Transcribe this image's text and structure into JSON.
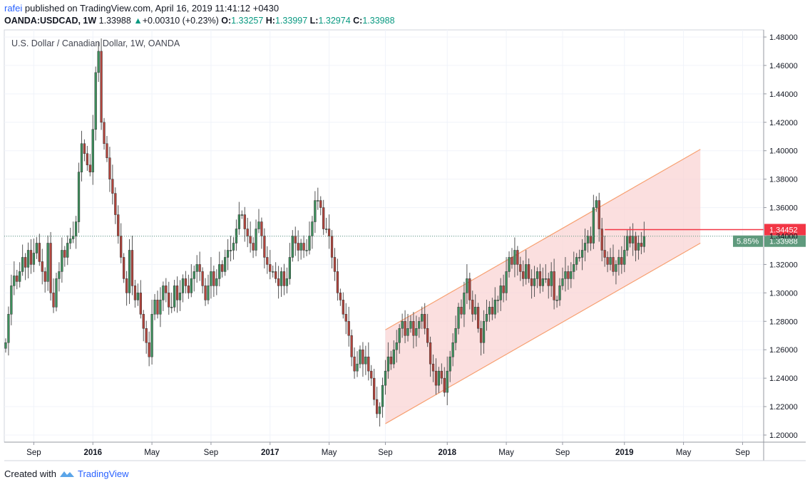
{
  "header": {
    "user": "rafei",
    "published_text": "published on TradingView.com, April 16, 2019 11:41:12 +0430",
    "symbol": "OANDA:USDCAD, 1W",
    "last": "1.33988",
    "arrow": "▲",
    "change": "+0.00310 (+0.23%)",
    "open_label": "O:",
    "open": "1.33257",
    "high_label": "H:",
    "high": "1.33997",
    "low_label": "L:",
    "low": "1.32974",
    "close_label": "C:",
    "close": "1.33988"
  },
  "footer": {
    "created_with": "Created with",
    "brand": "TradingView",
    "logo_icon": "tradingview-logo-icon"
  },
  "colors": {
    "up": "#26a69a",
    "down": "#ef5350",
    "bull_fill": "#3c8f5c",
    "bear_fill": "#b2443c",
    "channel": "#f7a071",
    "channel_fill": "#f9d2d2",
    "price_tag_red": "#f23645",
    "price_tag_green": "#5f9a7d"
  },
  "chart_data": {
    "type": "candlestick",
    "title": "U.S. Dollar / Canadian Dollar, 1W, OANDA",
    "ylim": [
      1.195,
      1.485
    ],
    "y_ticks": [
      "1.20000",
      "1.22000",
      "1.24000",
      "1.26000",
      "1.28000",
      "1.30000",
      "1.32000",
      "1.34000",
      "1.36000",
      "1.38000",
      "1.40000",
      "1.42000",
      "1.44000",
      "1.46000",
      "1.48000"
    ],
    "x_ticks": [
      "Sep",
      "2016",
      "May",
      "Sep",
      "2017",
      "May",
      "Sep",
      "2018",
      "May",
      "Sep",
      "2019",
      "May",
      "Sep"
    ],
    "x_tick_bar_index": [
      10,
      31,
      52,
      73,
      94,
      115,
      135,
      157,
      178,
      198,
      220,
      241,
      262
    ],
    "total_bars": 270,
    "closes": [
      1.265,
      1.285,
      1.305,
      1.312,
      1.308,
      1.315,
      1.325,
      1.318,
      1.33,
      1.32,
      1.328,
      1.335,
      1.322,
      1.315,
      1.308,
      1.335,
      1.3,
      1.29,
      1.31,
      1.315,
      1.33,
      1.325,
      1.335,
      1.338,
      1.34,
      1.35,
      1.385,
      1.405,
      1.398,
      1.39,
      1.385,
      1.415,
      1.455,
      1.47,
      1.42,
      1.405,
      1.395,
      1.38,
      1.37,
      1.355,
      1.34,
      1.325,
      1.31,
      1.3,
      1.33,
      1.305,
      1.295,
      1.3,
      1.285,
      1.275,
      1.265,
      1.255,
      1.285,
      1.295,
      1.285,
      1.295,
      1.305,
      1.3,
      1.29,
      1.29,
      1.305,
      1.295,
      1.3,
      1.31,
      1.305,
      1.3,
      1.31,
      1.315,
      1.32,
      1.315,
      1.305,
      1.295,
      1.305,
      1.315,
      1.305,
      1.31,
      1.32,
      1.315,
      1.325,
      1.33,
      1.33,
      1.335,
      1.345,
      1.355,
      1.355,
      1.345,
      1.34,
      1.335,
      1.33,
      1.345,
      1.35,
      1.34,
      1.325,
      1.32,
      1.315,
      1.315,
      1.31,
      1.305,
      1.315,
      1.305,
      1.31,
      1.325,
      1.34,
      1.335,
      1.33,
      1.335,
      1.33,
      1.33,
      1.34,
      1.35,
      1.365,
      1.365,
      1.36,
      1.345,
      1.345,
      1.34,
      1.325,
      1.315,
      1.3,
      1.295,
      1.285,
      1.28,
      1.27,
      1.255,
      1.245,
      1.25,
      1.26,
      1.25,
      1.255,
      1.245,
      1.24,
      1.225,
      1.215,
      1.22,
      1.235,
      1.245,
      1.255,
      1.25,
      1.26,
      1.265,
      1.275,
      1.28,
      1.27,
      1.275,
      1.28,
      1.27,
      1.275,
      1.28,
      1.285,
      1.275,
      1.265,
      1.25,
      1.245,
      1.235,
      1.245,
      1.24,
      1.23,
      1.245,
      1.255,
      1.265,
      1.275,
      1.29,
      1.285,
      1.3,
      1.31,
      1.295,
      1.285,
      1.29,
      1.275,
      1.265,
      1.28,
      1.285,
      1.29,
      1.285,
      1.295,
      1.295,
      1.305,
      1.3,
      1.315,
      1.325,
      1.32,
      1.33,
      1.32,
      1.315,
      1.31,
      1.32,
      1.31,
      1.305,
      1.31,
      1.315,
      1.305,
      1.31,
      1.31,
      1.305,
      1.315,
      1.295,
      1.295,
      1.305,
      1.31,
      1.315,
      1.31,
      1.315,
      1.32,
      1.325,
      1.325,
      1.33,
      1.335,
      1.34,
      1.335,
      1.36,
      1.365,
      1.345,
      1.33,
      1.325,
      1.32,
      1.325,
      1.315,
      1.32,
      1.325,
      1.32,
      1.33,
      1.34,
      1.335,
      1.34,
      1.33,
      1.335,
      1.3326,
      1.3399
    ],
    "current_price": 1.33988,
    "current_price_label": "1.33988",
    "resistance_price": 1.34452,
    "resistance_price_label": "1.34452",
    "percent_label": "5.85%",
    "channel": {
      "upper_start": {
        "bar": 135,
        "price": 1.274
      },
      "upper_end": {
        "bar": 247,
        "price": 1.401
      },
      "lower_start": {
        "bar": 135,
        "price": 1.208
      },
      "lower_end": {
        "bar": 247,
        "price": 1.335
      }
    },
    "resistance_start_bar": 213
  }
}
